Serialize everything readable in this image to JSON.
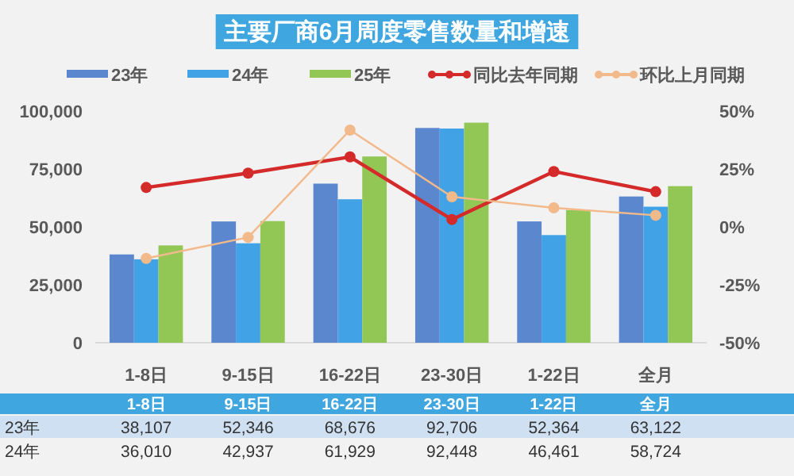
{
  "chart_data": {
    "type": "bar",
    "title": "主要厂商6月周度零售数量和增速",
    "categories": [
      "1-8日",
      "9-15日",
      "16-22日",
      "23-30日",
      "1-22日",
      "全月"
    ],
    "series": [
      {
        "name": "23年",
        "color": "#5b87cf",
        "values": [
          38107,
          52346,
          68676,
          92706,
          52364,
          63122
        ],
        "value_labels": [
          "38,107",
          "52,346",
          "68,676",
          "92,706",
          "52,364",
          "63,122"
        ]
      },
      {
        "name": "24年",
        "color": "#41a3e6",
        "values": [
          36010,
          42937,
          61929,
          92448,
          46461,
          58724
        ],
        "value_labels": [
          "36,010",
          "42,937",
          "61,929",
          "92,448",
          "46,461",
          "58,724"
        ]
      },
      {
        "name": "25年",
        "color": "#92c756",
        "values": [
          42000,
          52500,
          80400,
          95000,
          57300,
          67600
        ]
      },
      {
        "name": "同比去年同期",
        "type": "line",
        "axis": "y2",
        "color": "#d42a2a",
        "values": [
          17.0,
          23.2,
          30.2,
          3.2,
          23.9,
          15.2
        ]
      },
      {
        "name": "环比上月同期",
        "type": "line",
        "axis": "y2",
        "color": "#f2b98a",
        "values": [
          -13.6,
          -4.5,
          41.8,
          13.0,
          8.2,
          5.0
        ]
      }
    ],
    "ylim": [
      0,
      100000
    ],
    "yticks": [
      {
        "value": 0,
        "label": "0"
      },
      {
        "value": 25000,
        "label": "25,000"
      },
      {
        "value": 50000,
        "label": "50,000"
      },
      {
        "value": 75000,
        "label": "75,000"
      },
      {
        "value": 100000,
        "label": "100,000"
      }
    ],
    "y2lim": [
      -50,
      50
    ],
    "y2ticks": [
      {
        "value": -50,
        "label": "-50%"
      },
      {
        "value": -25,
        "label": "-25%"
      },
      {
        "value": 0,
        "label": "0%"
      },
      {
        "value": 25,
        "label": "25%"
      },
      {
        "value": 50,
        "label": "50%"
      }
    ],
    "marker": "circle",
    "legend": "top",
    "grid": false
  }
}
